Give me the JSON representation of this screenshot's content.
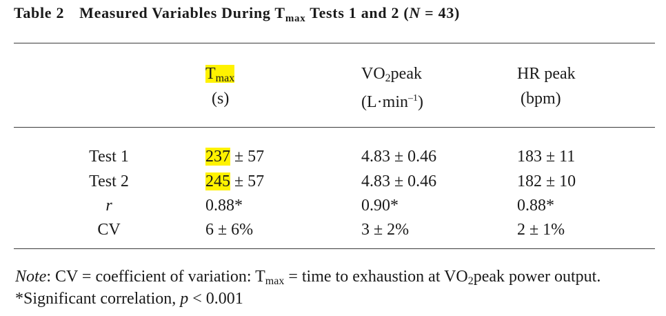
{
  "table": {
    "number": "Table 2",
    "title_pre": "Measured Variables During T",
    "title_sub": "max",
    "title_mid": " Tests 1 and 2 (",
    "title_n": "N",
    "title_end": " = 43)"
  },
  "headers": {
    "tmax": {
      "main": "T",
      "sub": "max",
      "unit": "(s)"
    },
    "vo2": {
      "pre": "VO",
      "sub": "2",
      "post": "peak",
      "unit_pre": "(L·min",
      "unit_sup": "–1",
      "unit_post": ")"
    },
    "hr": {
      "main": "HR peak",
      "unit": "(bpm)"
    }
  },
  "rows": [
    {
      "label": "Test 1",
      "tmax_hl": "237",
      "tmax_rest": " ± 57",
      "vo2": "4.83 ± 0.46",
      "hr": "183 ± 11"
    },
    {
      "label": "Test 2",
      "tmax_hl": "245",
      "tmax_rest": " ± 57",
      "vo2": "4.83 ± 0.46",
      "hr": "182 ± 10"
    },
    {
      "label": "r",
      "tmax_hl": "",
      "tmax_rest": "0.88*",
      "vo2": "0.90*",
      "hr": "0.88*"
    },
    {
      "label": "CV",
      "tmax_hl": "",
      "tmax_rest": "6 ± 6%",
      "vo2": "3 ± 2%",
      "hr": "2 ± 1%"
    }
  ],
  "notes": {
    "note_label": "Note",
    "line1_a": ": CV = coefficient of variation: T",
    "line1_sub": "max",
    "line1_b": " = time to exhaustion at VO",
    "line1_sub2": "2",
    "line1_c": "peak power output.",
    "line2_a": "*Significant correlation, ",
    "line2_p": "p",
    "line2_b": " < 0.001"
  },
  "colors": {
    "highlight": "#fff200",
    "text": "#1a1a1a",
    "rule": "#3a3a3a"
  }
}
